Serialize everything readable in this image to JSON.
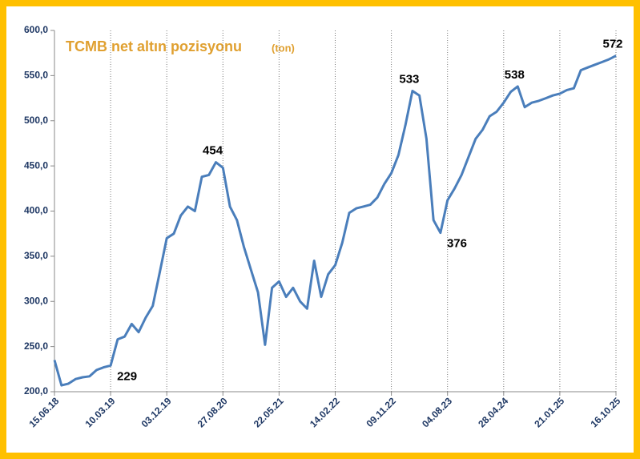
{
  "chart_data": {
    "type": "line",
    "title": "TCMB net altın pozisyonu",
    "subtitle": "(ton)",
    "categories": [
      "15.06.18",
      null,
      null,
      null,
      null,
      null,
      null,
      null,
      "10.03.19",
      null,
      null,
      null,
      null,
      null,
      null,
      null,
      "03.12.19",
      null,
      null,
      null,
      null,
      null,
      null,
      null,
      "27.08.20",
      null,
      null,
      null,
      null,
      null,
      null,
      null,
      "22.05.21",
      null,
      null,
      null,
      null,
      null,
      null,
      null,
      "14.02.22",
      null,
      null,
      null,
      null,
      null,
      null,
      null,
      "09.11.22",
      null,
      null,
      null,
      null,
      null,
      null,
      null,
      "04.08.23",
      null,
      null,
      null,
      null,
      null,
      null,
      null,
      "28.04.24",
      null,
      null,
      null,
      null,
      null,
      null,
      null,
      "21.01.25",
      null,
      null,
      null,
      null,
      null,
      null,
      null,
      "16.10.25"
    ],
    "series": [
      {
        "name": "TCMB net altın pozisyonu",
        "color": "#4a7ebb",
        "values": [
          235,
          207,
          209,
          214,
          216,
          217,
          224,
          227,
          229,
          258,
          261,
          275,
          266,
          282,
          295,
          332,
          370,
          375,
          395,
          405,
          400,
          438,
          440,
          454,
          448,
          405,
          390,
          360,
          335,
          310,
          252,
          315,
          322,
          305,
          315,
          300,
          292,
          345,
          305,
          330,
          340,
          365,
          398,
          403,
          405,
          407,
          415,
          430,
          442,
          462,
          495,
          533,
          528,
          480,
          390,
          376,
          412,
          425,
          440,
          460,
          480,
          490,
          505,
          510,
          520,
          532,
          538,
          515,
          520,
          522,
          525,
          528,
          530,
          534,
          536,
          556,
          559,
          562,
          565,
          568,
          572
        ],
        "value_labels": [
          null,
          null,
          null,
          null,
          null,
          null,
          null,
          null,
          "229",
          null,
          null,
          null,
          null,
          null,
          null,
          null,
          null,
          null,
          null,
          null,
          null,
          null,
          null,
          "454",
          null,
          null,
          null,
          null,
          null,
          null,
          null,
          null,
          null,
          null,
          null,
          null,
          null,
          null,
          null,
          null,
          null,
          null,
          null,
          null,
          null,
          null,
          null,
          null,
          null,
          null,
          null,
          "533",
          null,
          null,
          null,
          "376",
          null,
          null,
          null,
          null,
          null,
          null,
          null,
          null,
          null,
          null,
          "538",
          null,
          null,
          null,
          null,
          null,
          null,
          null,
          null,
          null,
          null,
          null,
          null,
          null,
          "572"
        ]
      }
    ],
    "ylim": [
      200,
      600
    ],
    "yticks": [
      {
        "value": 200,
        "label": "200,0"
      },
      {
        "value": 250,
        "label": "250,0"
      },
      {
        "value": 300,
        "label": "300,0"
      },
      {
        "value": 350,
        "label": "350,0"
      },
      {
        "value": 400,
        "label": "400,0"
      },
      {
        "value": 450,
        "label": "450,0"
      },
      {
        "value": 500,
        "label": "500,0"
      },
      {
        "value": 550,
        "label": "550,0"
      },
      {
        "value": 600,
        "label": "600,0"
      }
    ],
    "grid": true
  }
}
